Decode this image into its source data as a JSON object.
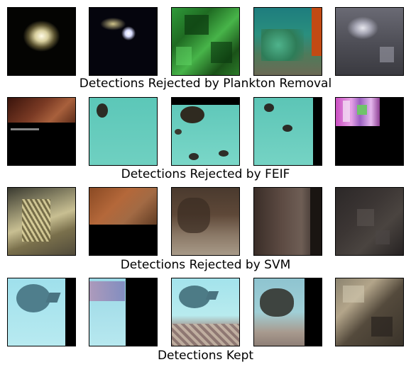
{
  "figure": {
    "captions": [
      "Detections Rejected by Plankton Removal",
      "Detections Rejected by FEIF",
      "Detections Rejected by SVM",
      "Detections Kept"
    ]
  }
}
